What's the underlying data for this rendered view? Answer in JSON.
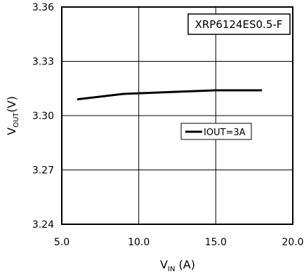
{
  "chart_data": {
    "type": "line",
    "annotation": "XRP6124ES0.5-F",
    "xlabel": {
      "main": "V",
      "sub": "IN",
      "unit": " (A)"
    },
    "ylabel": {
      "main": "V",
      "sub": "OUT",
      "unit": "(V)"
    },
    "xlim": [
      5.0,
      20.0
    ],
    "ylim": [
      3.24,
      3.36
    ],
    "x_ticks": [
      5.0,
      10.0,
      15.0,
      20.0
    ],
    "x_tick_labels": [
      "5.0",
      "10.0",
      "15.0",
      "20.0"
    ],
    "y_ticks": [
      3.24,
      3.27,
      3.3,
      3.33,
      3.36
    ],
    "y_tick_labels": [
      "3.24",
      "3.27",
      "3.30",
      "3.33",
      "3.36"
    ],
    "grid": true,
    "legend_position": "center-right",
    "series": [
      {
        "name": "IOUT=3A",
        "color": "#000000",
        "x": [
          6,
          9,
          12,
          15,
          18
        ],
        "y": [
          3.309,
          3.312,
          3.313,
          3.314,
          3.314
        ]
      }
    ]
  }
}
